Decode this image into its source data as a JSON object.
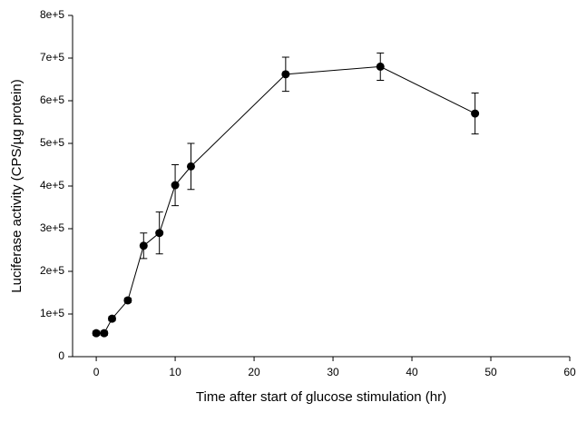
{
  "chart_data": {
    "type": "line",
    "x_label": "Time after start of glucose stimulation (hr)",
    "y_label": "Luciferase activity (CPS/µg protein)",
    "x": [
      0,
      1,
      2,
      4,
      6,
      8,
      10,
      12,
      24,
      36,
      48
    ],
    "series": [
      {
        "color": "#000000",
        "values": [
          55000,
          55000,
          89000,
          132000,
          260000,
          290000,
          402000,
          446000,
          662000,
          680000,
          570000
        ],
        "errors": [
          5000,
          5000,
          5000,
          5000,
          30000,
          49000,
          48000,
          54000,
          40000,
          32000,
          48000
        ]
      }
    ],
    "xlim": [
      -3,
      60
    ],
    "xticks": [
      0,
      10,
      20,
      30,
      40,
      50,
      60
    ],
    "ylim": [
      0,
      800000
    ],
    "yticks": [
      0,
      {
        "value": 100000,
        "label": "1e+5"
      },
      {
        "value": 200000,
        "label": "2e+5"
      },
      {
        "value": 300000,
        "label": "3e+5"
      },
      {
        "value": 400000,
        "label": "4e+5"
      },
      {
        "value": 500000,
        "label": "5e+5"
      },
      {
        "value": 600000,
        "label": "6e+5"
      },
      {
        "value": 700000,
        "label": "7e+5"
      },
      {
        "value": 800000,
        "label": "8e+5"
      }
    ]
  }
}
